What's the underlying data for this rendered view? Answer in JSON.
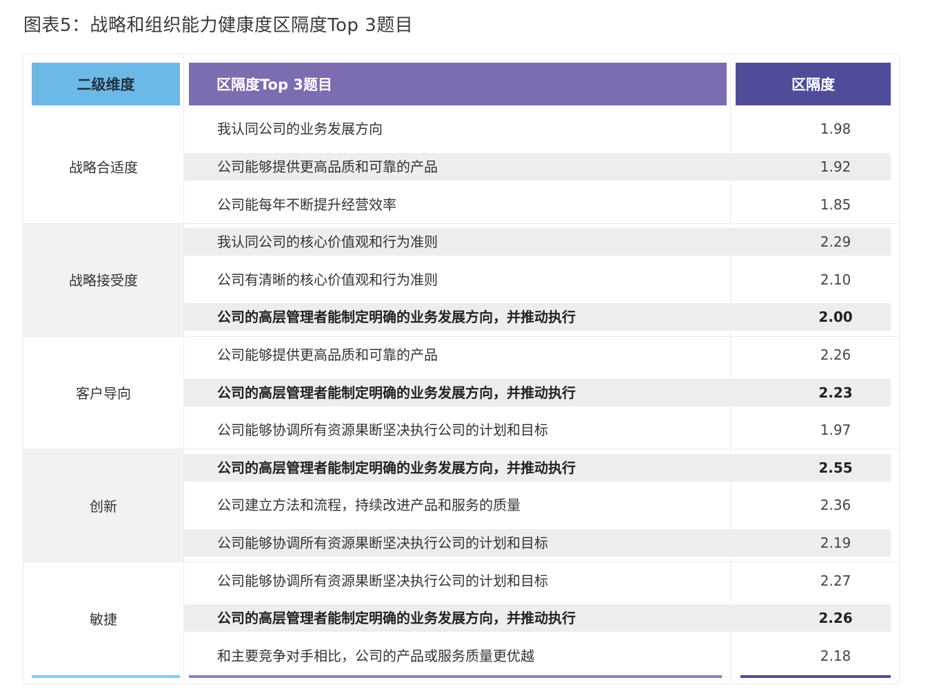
{
  "title": "图表5：战略和组织能力健康度区隔度Top 3题目",
  "headers": {
    "dimension": "二级维度",
    "question": "区隔度Top 3题目",
    "score": "区隔度"
  },
  "colors": {
    "dimension_header": "#6cb8e6",
    "question_header": "#7d6cb0",
    "score_header": "#4f4d9a",
    "stripe": "#ededed"
  },
  "groups": [
    {
      "dimension": "战略合适度",
      "rows": [
        {
          "question": "我认同公司的业务发展方向",
          "score": "1.98",
          "bold": false
        },
        {
          "question": "公司能够提供更高品质和可靠的产品",
          "score": "1.92",
          "bold": false
        },
        {
          "question": "公司能每年不断提升经营效率",
          "score": "1.85",
          "bold": false
        }
      ]
    },
    {
      "dimension": "战略接受度",
      "rows": [
        {
          "question": "我认同公司的核心价值观和行为准则",
          "score": "2.29",
          "bold": false
        },
        {
          "question": "公司有清晰的核心价值观和行为准则",
          "score": "2.10",
          "bold": false
        },
        {
          "question": "公司的高层管理者能制定明确的业务发展方向，并推动执行",
          "score": "2.00",
          "bold": true
        }
      ]
    },
    {
      "dimension": "客户导向",
      "rows": [
        {
          "question": "公司能够提供更高品质和可靠的产品",
          "score": "2.26",
          "bold": false
        },
        {
          "question": "公司的高层管理者能制定明确的业务发展方向，并推动执行",
          "score": "2.23",
          "bold": true
        },
        {
          "question": "公司能够协调所有资源果断坚决执行公司的计划和目标",
          "score": "1.97",
          "bold": false
        }
      ]
    },
    {
      "dimension": "创新",
      "rows": [
        {
          "question": "公司的高层管理者能制定明确的业务发展方向，并推动执行",
          "score": "2.55",
          "bold": true
        },
        {
          "question": "公司建立方法和流程，持续改进产品和服务的质量",
          "score": "2.36",
          "bold": false
        },
        {
          "question": "公司能够协调所有资源果断坚决执行公司的计划和目标",
          "score": "2.19",
          "bold": false
        }
      ]
    },
    {
      "dimension": "敏捷",
      "rows": [
        {
          "question": "公司能够协调所有资源果断坚决执行公司的计划和目标",
          "score": "2.27",
          "bold": false
        },
        {
          "question": "公司的高层管理者能制定明确的业务发展方向，并推动执行",
          "score": "2.26",
          "bold": true
        },
        {
          "question": "和主要竞争对手相比，公司的产品或服务质量更优越",
          "score": "2.18",
          "bold": false
        }
      ]
    }
  ]
}
